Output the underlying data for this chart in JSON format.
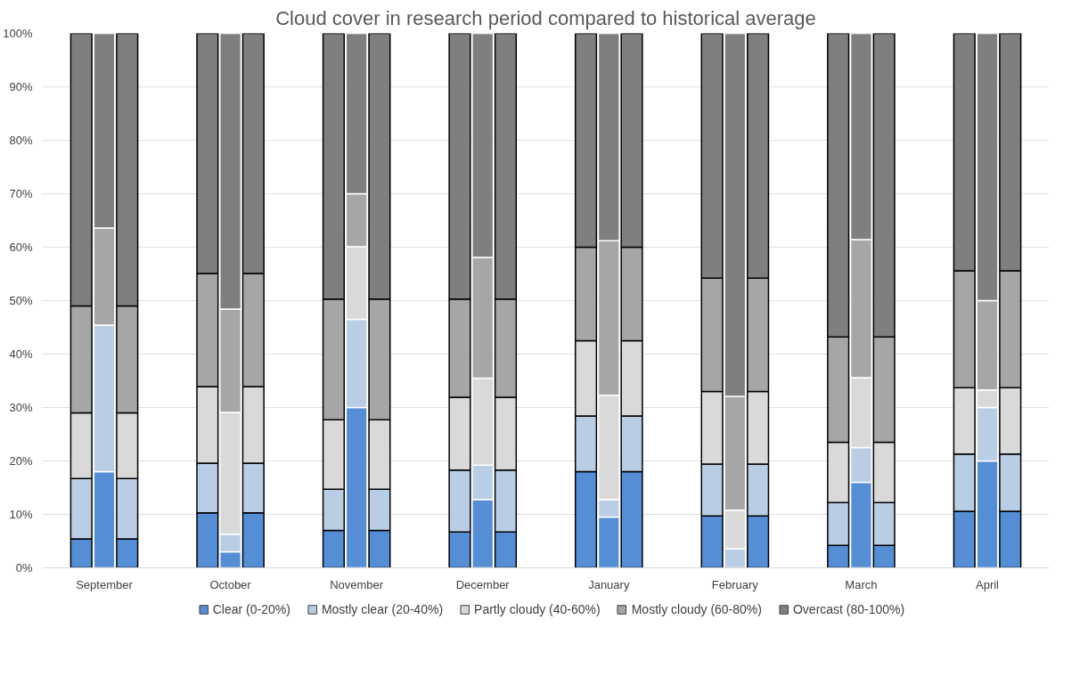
{
  "chart_data": {
    "type": "bar",
    "title": "Cloud cover in research period compared to historical average",
    "categories": [
      null,
      "September",
      null,
      null,
      "October",
      null,
      null,
      "November",
      null,
      null,
      "December",
      null,
      null,
      "January",
      null,
      null,
      "February",
      null,
      null,
      "March",
      null,
      null,
      "April",
      null
    ],
    "stacked": true,
    "series": [
      {
        "name": "Clear (0-20%)",
        "color": "#558ed5",
        "values": [
          5.4,
          18.0,
          5.4,
          10.3,
          3.0,
          10.3,
          7.0,
          30.0,
          7.0,
          6.7,
          12.8,
          6.7,
          18.0,
          9.5,
          18.0,
          9.7,
          0,
          9.7,
          4.2,
          16.0,
          4.2,
          10.6,
          20.0,
          10.6
        ]
      },
      {
        "name": "Mostly clear (20-40%)",
        "color": "#b9cde5",
        "values": [
          11.3,
          27.4,
          11.3,
          9.3,
          3.3,
          9.3,
          7.7,
          16.5,
          7.7,
          11.6,
          6.4,
          11.6,
          10.4,
          3.3,
          10.4,
          9.7,
          3.6,
          9.7,
          8.0,
          6.5,
          8.0,
          10.7,
          10.0,
          10.7
        ]
      },
      {
        "name": "Partly cloudy (40-60%)",
        "color": "#d9d9d9",
        "values": [
          12.3,
          0,
          12.3,
          14.3,
          22.8,
          14.3,
          13.0,
          13.6,
          13.0,
          13.6,
          16.3,
          13.6,
          14.1,
          19.5,
          14.1,
          13.6,
          7.2,
          13.6,
          11.3,
          13.1,
          11.3,
          12.4,
          3.3,
          12.4
        ]
      },
      {
        "name": "Mostly cloudy (60-80%)",
        "color": "#a6a6a6",
        "values": [
          20.0,
          18.2,
          20.0,
          21.2,
          19.3,
          21.2,
          22.6,
          9.9,
          22.6,
          18.4,
          22.6,
          18.4,
          17.5,
          28.9,
          17.5,
          21.2,
          21.3,
          21.2,
          19.7,
          25.8,
          19.7,
          21.9,
          16.7,
          21.9
        ]
      },
      {
        "name": "Overcast (80-100%)",
        "color": "#7f7f7f",
        "values": [
          51.0,
          36.4,
          51.0,
          44.9,
          51.6,
          44.9,
          49.7,
          30.0,
          49.7,
          49.7,
          41.9,
          49.7,
          40.0,
          38.8,
          40.0,
          45.8,
          67.9,
          45.8,
          56.8,
          38.6,
          56.8,
          44.4,
          50.0,
          44.4
        ]
      }
    ],
    "ylim": [
      0,
      100
    ],
    "yticks": [
      {
        "value": 0,
        "label": "0%"
      },
      {
        "value": 10,
        "label": "10%"
      },
      {
        "value": 20,
        "label": "20%"
      },
      {
        "value": 30,
        "label": "30%"
      },
      {
        "value": 40,
        "label": "40%"
      },
      {
        "value": 50,
        "label": "50%"
      },
      {
        "value": 60,
        "label": "60%"
      },
      {
        "value": 70,
        "label": "70%"
      },
      {
        "value": 80,
        "label": "80%"
      },
      {
        "value": 90,
        "label": "90%"
      },
      {
        "value": 100,
        "label": "100%"
      }
    ],
    "grid": "y",
    "legend": "bottom"
  }
}
